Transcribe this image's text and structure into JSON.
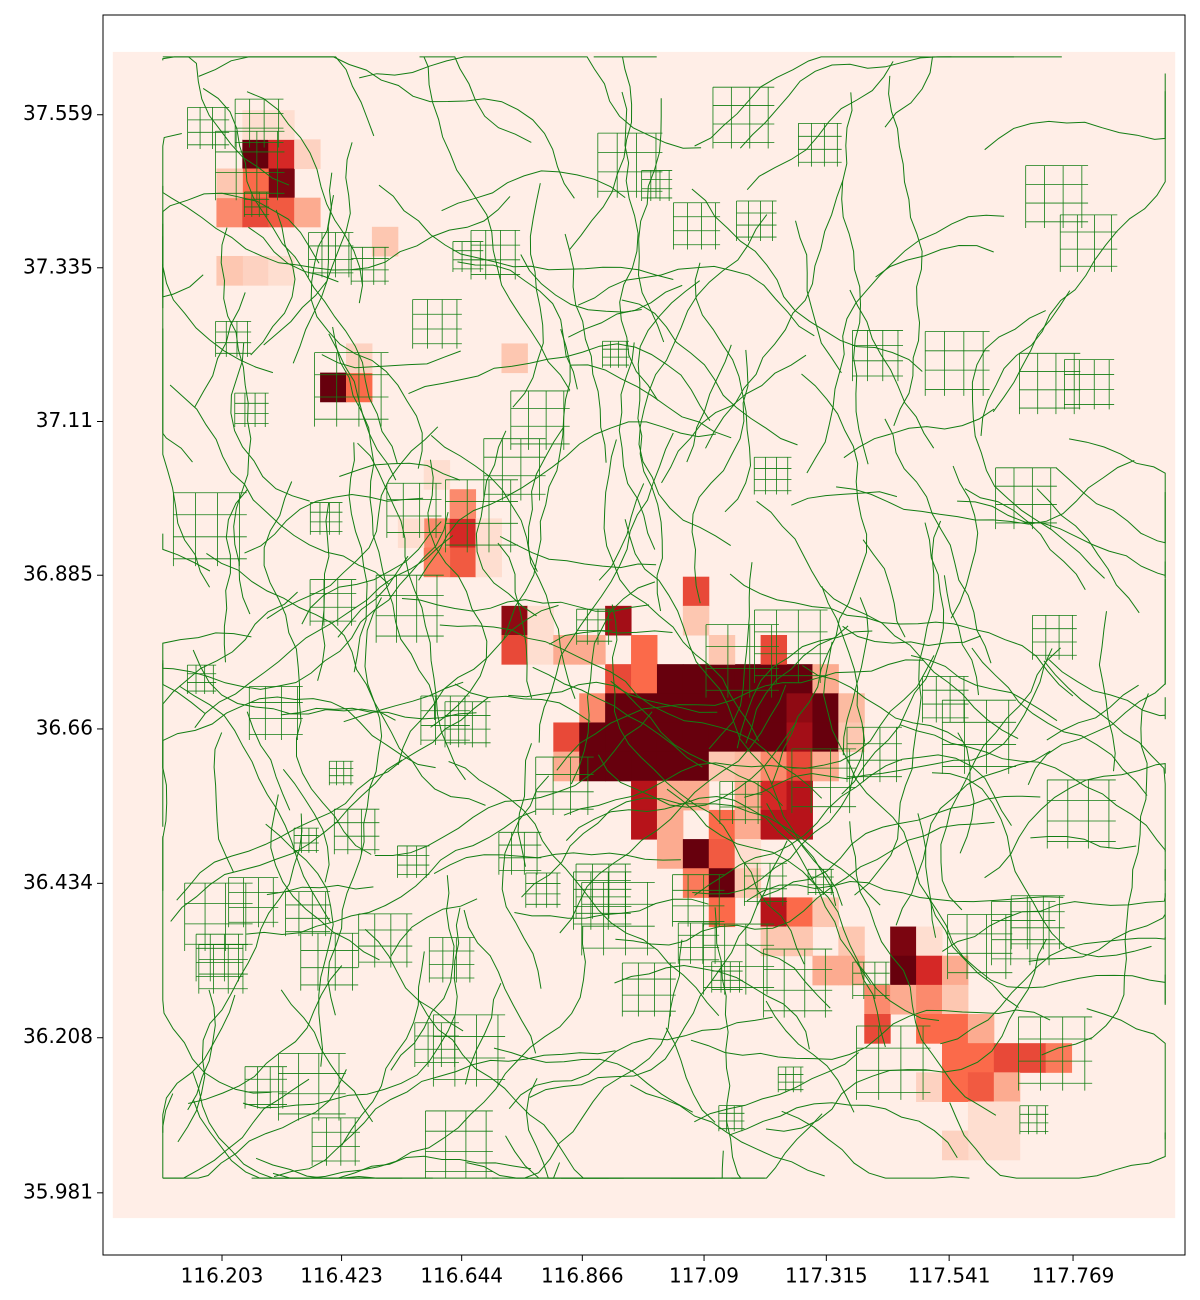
{
  "chart_data": {
    "type": "heatmap",
    "xlim": [
      115.984,
      117.975
    ],
    "ylim": [
      35.89,
      37.705
    ],
    "xticks": [
      116.203,
      116.423,
      116.644,
      116.866,
      117.09,
      117.315,
      117.541,
      117.769
    ],
    "yticks": [
      37.559,
      37.335,
      37.11,
      36.885,
      36.66,
      36.434,
      36.208,
      35.981
    ],
    "extent": [
      116.002,
      117.957,
      35.944,
      37.651
    ],
    "shape": [
      40,
      41
    ],
    "colormap": [
      "#fff5f0",
      "#fcbba1",
      "#fb6a4a",
      "#cb181d",
      "#67000d"
    ],
    "road_color": "#137d13",
    "cells": [
      {
        "col": 5,
        "row": 3,
        "value": 1.0
      },
      {
        "col": 6,
        "row": 3,
        "value": 0.7
      },
      {
        "col": 6,
        "row": 4,
        "value": 0.95
      },
      {
        "col": 5,
        "row": 4,
        "value": 0.5
      },
      {
        "col": 4,
        "row": 5,
        "value": 0.4
      },
      {
        "col": 5,
        "row": 5,
        "value": 0.6
      },
      {
        "col": 6,
        "row": 5,
        "value": 0.55
      },
      {
        "col": 7,
        "row": 5,
        "value": 0.3
      },
      {
        "col": 4,
        "row": 4,
        "value": 0.2
      },
      {
        "col": 5,
        "row": 2,
        "value": 0.1
      },
      {
        "col": 6,
        "row": 2,
        "value": 0.1
      },
      {
        "col": 7,
        "row": 3,
        "value": 0.15
      },
      {
        "col": 5,
        "row": 7,
        "value": 0.15
      },
      {
        "col": 4,
        "row": 7,
        "value": 0.2
      },
      {
        "col": 6,
        "row": 7,
        "value": 0.1
      },
      {
        "col": 10,
        "row": 6,
        "value": 0.2
      },
      {
        "col": 8,
        "row": 11,
        "value": 1.0
      },
      {
        "col": 9,
        "row": 11,
        "value": 0.5
      },
      {
        "col": 9,
        "row": 10,
        "value": 0.15
      },
      {
        "col": 15,
        "row": 10,
        "value": 0.2
      },
      {
        "col": 12,
        "row": 16,
        "value": 0.4
      },
      {
        "col": 13,
        "row": 16,
        "value": 0.7
      },
      {
        "col": 13,
        "row": 17,
        "value": 0.55
      },
      {
        "col": 12,
        "row": 17,
        "value": 0.45
      },
      {
        "col": 13,
        "row": 15,
        "value": 0.4
      },
      {
        "col": 11,
        "row": 16,
        "value": 0.1
      },
      {
        "col": 14,
        "row": 16,
        "value": 0.1
      },
      {
        "col": 14,
        "row": 17,
        "value": 0.1
      },
      {
        "col": 12,
        "row": 14,
        "value": 0.1
      },
      {
        "col": 15,
        "row": 19,
        "value": 0.9
      },
      {
        "col": 15,
        "row": 20,
        "value": 0.6
      },
      {
        "col": 16,
        "row": 20,
        "value": 0.1
      },
      {
        "col": 16,
        "row": 19,
        "value": 0.1
      },
      {
        "col": 19,
        "row": 19,
        "value": 0.85
      },
      {
        "col": 20,
        "row": 20,
        "value": 0.5
      },
      {
        "col": 22,
        "row": 18,
        "value": 0.6
      },
      {
        "col": 22,
        "row": 19,
        "value": 0.2
      },
      {
        "col": 19,
        "row": 21,
        "value": 0.6
      },
      {
        "col": 20,
        "row": 21,
        "value": 0.5
      },
      {
        "col": 21,
        "row": 21,
        "value": 1.0
      },
      {
        "col": 22,
        "row": 21,
        "value": 1.0
      },
      {
        "col": 23,
        "row": 21,
        "value": 1.0
      },
      {
        "col": 24,
        "row": 21,
        "value": 1.0
      },
      {
        "col": 25,
        "row": 21,
        "value": 1.0
      },
      {
        "col": 26,
        "row": 21,
        "value": 1.0
      },
      {
        "col": 27,
        "row": 21,
        "value": 0.3
      },
      {
        "col": 18,
        "row": 22,
        "value": 0.4
      },
      {
        "col": 19,
        "row": 22,
        "value": 1.0
      },
      {
        "col": 20,
        "row": 22,
        "value": 1.0
      },
      {
        "col": 21,
        "row": 22,
        "value": 1.0
      },
      {
        "col": 22,
        "row": 22,
        "value": 1.0
      },
      {
        "col": 23,
        "row": 22,
        "value": 1.0
      },
      {
        "col": 24,
        "row": 22,
        "value": 1.0
      },
      {
        "col": 25,
        "row": 22,
        "value": 1.0
      },
      {
        "col": 26,
        "row": 22,
        "value": 0.9
      },
      {
        "col": 27,
        "row": 22,
        "value": 1.0
      },
      {
        "col": 28,
        "row": 22,
        "value": 0.25
      },
      {
        "col": 17,
        "row": 23,
        "value": 0.6
      },
      {
        "col": 18,
        "row": 23,
        "value": 1.0
      },
      {
        "col": 19,
        "row": 23,
        "value": 1.0
      },
      {
        "col": 20,
        "row": 23,
        "value": 1.0
      },
      {
        "col": 21,
        "row": 23,
        "value": 1.0
      },
      {
        "col": 22,
        "row": 23,
        "value": 1.0
      },
      {
        "col": 23,
        "row": 23,
        "value": 1.0
      },
      {
        "col": 24,
        "row": 23,
        "value": 1.0
      },
      {
        "col": 25,
        "row": 23,
        "value": 1.0
      },
      {
        "col": 26,
        "row": 23,
        "value": 0.85
      },
      {
        "col": 27,
        "row": 23,
        "value": 1.0
      },
      {
        "col": 28,
        "row": 23,
        "value": 0.2
      },
      {
        "col": 17,
        "row": 24,
        "value": 0.3
      },
      {
        "col": 18,
        "row": 24,
        "value": 1.0
      },
      {
        "col": 19,
        "row": 24,
        "value": 1.0
      },
      {
        "col": 20,
        "row": 24,
        "value": 1.0
      },
      {
        "col": 21,
        "row": 24,
        "value": 1.0
      },
      {
        "col": 22,
        "row": 24,
        "value": 1.0
      },
      {
        "col": 23,
        "row": 24,
        "value": 0.2
      },
      {
        "col": 24,
        "row": 24,
        "value": 0.25
      },
      {
        "col": 25,
        "row": 24,
        "value": 0.4
      },
      {
        "col": 26,
        "row": 24,
        "value": 0.6
      },
      {
        "col": 27,
        "row": 24,
        "value": 0.3
      },
      {
        "col": 17,
        "row": 20,
        "value": 0.3
      },
      {
        "col": 18,
        "row": 20,
        "value": 0.3
      },
      {
        "col": 23,
        "row": 20,
        "value": 0.2
      },
      {
        "col": 25,
        "row": 20,
        "value": 0.6
      },
      {
        "col": 20,
        "row": 25,
        "value": 0.8
      },
      {
        "col": 21,
        "row": 25,
        "value": 0.3
      },
      {
        "col": 22,
        "row": 25,
        "value": 0.3
      },
      {
        "col": 24,
        "row": 25,
        "value": 0.3
      },
      {
        "col": 25,
        "row": 25,
        "value": 0.7
      },
      {
        "col": 26,
        "row": 25,
        "value": 0.8
      },
      {
        "col": 20,
        "row": 26,
        "value": 0.8
      },
      {
        "col": 21,
        "row": 26,
        "value": 0.3
      },
      {
        "col": 23,
        "row": 26,
        "value": 0.5
      },
      {
        "col": 24,
        "row": 26,
        "value": 0.3
      },
      {
        "col": 25,
        "row": 26,
        "value": 0.8
      },
      {
        "col": 26,
        "row": 26,
        "value": 0.8
      },
      {
        "col": 21,
        "row": 27,
        "value": 0.3
      },
      {
        "col": 22,
        "row": 27,
        "value": 1.0
      },
      {
        "col": 23,
        "row": 27,
        "value": 0.55
      },
      {
        "col": 24,
        "row": 27,
        "value": 0.1
      },
      {
        "col": 22,
        "row": 28,
        "value": 0.45
      },
      {
        "col": 23,
        "row": 28,
        "value": 1.0
      },
      {
        "col": 24,
        "row": 28,
        "value": 0.2
      },
      {
        "col": 23,
        "row": 29,
        "value": 0.5
      },
      {
        "col": 25,
        "row": 29,
        "value": 0.8
      },
      {
        "col": 26,
        "row": 29,
        "value": 0.5
      },
      {
        "col": 27,
        "row": 29,
        "value": 0.2
      },
      {
        "col": 25,
        "row": 30,
        "value": 0.2
      },
      {
        "col": 26,
        "row": 30,
        "value": 0.2
      },
      {
        "col": 28,
        "row": 30,
        "value": 0.2
      },
      {
        "col": 30,
        "row": 30,
        "value": 0.95
      },
      {
        "col": 31,
        "row": 30,
        "value": 0.1
      },
      {
        "col": 30,
        "row": 31,
        "value": 1.0
      },
      {
        "col": 31,
        "row": 31,
        "value": 0.7
      },
      {
        "col": 32,
        "row": 31,
        "value": 0.3
      },
      {
        "col": 28,
        "row": 31,
        "value": 0.3
      },
      {
        "col": 27,
        "row": 31,
        "value": 0.3
      },
      {
        "col": 29,
        "row": 32,
        "value": 0.4
      },
      {
        "col": 30,
        "row": 32,
        "value": 0.3
      },
      {
        "col": 31,
        "row": 32,
        "value": 0.4
      },
      {
        "col": 32,
        "row": 32,
        "value": 0.2
      },
      {
        "col": 29,
        "row": 33,
        "value": 0.6
      },
      {
        "col": 31,
        "row": 33,
        "value": 0.5
      },
      {
        "col": 32,
        "row": 33,
        "value": 0.5
      },
      {
        "col": 33,
        "row": 33,
        "value": 0.3
      },
      {
        "col": 32,
        "row": 34,
        "value": 0.5
      },
      {
        "col": 33,
        "row": 34,
        "value": 0.5
      },
      {
        "col": 34,
        "row": 34,
        "value": 0.6
      },
      {
        "col": 35,
        "row": 34,
        "value": 0.6
      },
      {
        "col": 36,
        "row": 34,
        "value": 0.45
      },
      {
        "col": 31,
        "row": 35,
        "value": 0.15
      },
      {
        "col": 32,
        "row": 35,
        "value": 0.5
      },
      {
        "col": 33,
        "row": 35,
        "value": 0.55
      },
      {
        "col": 34,
        "row": 35,
        "value": 0.3
      },
      {
        "col": 33,
        "row": 36,
        "value": 0.1
      },
      {
        "col": 34,
        "row": 36,
        "value": 0.1
      },
      {
        "col": 33,
        "row": 37,
        "value": 0.1
      },
      {
        "col": 32,
        "row": 37,
        "value": 0.15
      },
      {
        "col": 34,
        "row": 37,
        "value": 0.1
      }
    ]
  }
}
